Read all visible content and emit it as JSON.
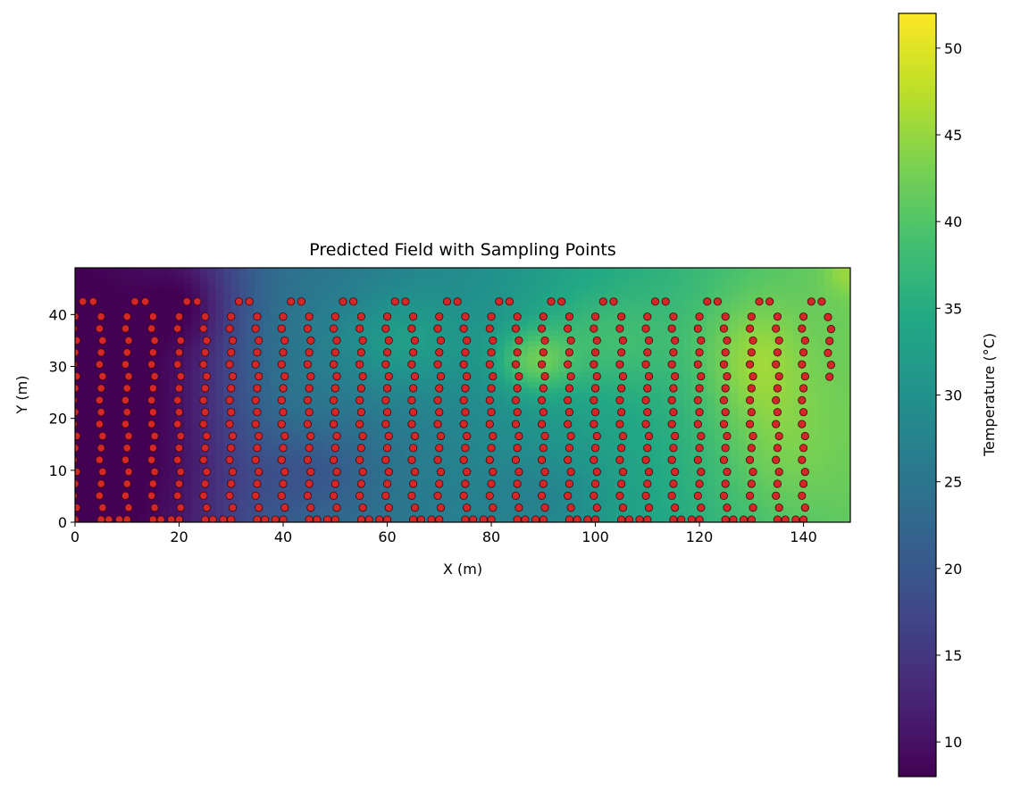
{
  "chart_data": {
    "type": "heatmap",
    "title": "Predicted Field with Sampling Points",
    "xlabel": "X (m)",
    "ylabel": "Y (m)",
    "xlim": [
      0,
      149
    ],
    "ylim": [
      0,
      49
    ],
    "x_ticks": [
      0,
      20,
      40,
      60,
      80,
      100,
      120,
      140
    ],
    "y_ticks": [
      0,
      10,
      20,
      30,
      40
    ],
    "colorbar": {
      "label": "Temperature (°C)",
      "range": [
        8,
        52
      ],
      "ticks": [
        10,
        15,
        20,
        25,
        30,
        35,
        40,
        45,
        50
      ],
      "colormap": "viridis"
    },
    "field_blobs": [
      {
        "x": 0,
        "y": 25,
        "sx": 18,
        "sy": 60,
        "value": -8
      },
      {
        "x": 20,
        "y": 25,
        "sx": 14,
        "sy": 60,
        "value": -6
      },
      {
        "x": 22,
        "y": 42,
        "sx": 8,
        "sy": 8,
        "value": -4
      },
      {
        "x": 40,
        "y": 30,
        "sx": 12,
        "sy": 25,
        "value": 3
      },
      {
        "x": 62,
        "y": 35,
        "sx": 12,
        "sy": 10,
        "value": 6
      },
      {
        "x": 88,
        "y": 31,
        "sx": 7,
        "sy": 6,
        "value": 9
      },
      {
        "x": 100,
        "y": 35,
        "sx": 15,
        "sy": 10,
        "value": 5
      },
      {
        "x": 130,
        "y": 32,
        "sx": 10,
        "sy": 12,
        "value": 6
      },
      {
        "x": 135,
        "y": 15,
        "sx": 12,
        "sy": 15,
        "value": 4
      },
      {
        "x": 148,
        "y": 48,
        "sx": 4,
        "sy": 4,
        "value": 3
      },
      {
        "x": 45,
        "y": 10,
        "sx": 12,
        "sy": 8,
        "value": -4
      },
      {
        "x": 90,
        "y": 5,
        "sx": 12,
        "sy": 8,
        "value": -3
      }
    ],
    "point_color": "#d62728",
    "point_edge_color": "#3a0a0a",
    "sampling_path": {
      "lane_x": [
        0,
        5,
        10,
        15,
        20,
        25,
        30,
        35,
        40,
        45,
        50,
        55,
        60,
        65,
        70,
        75,
        80,
        85,
        90,
        95,
        100,
        105,
        110,
        115,
        120,
        125,
        130,
        135,
        140,
        145
      ],
      "y_min": 0.5,
      "y_max": 42.5,
      "last_lane_y_min": 28,
      "step": 2.3
    }
  }
}
